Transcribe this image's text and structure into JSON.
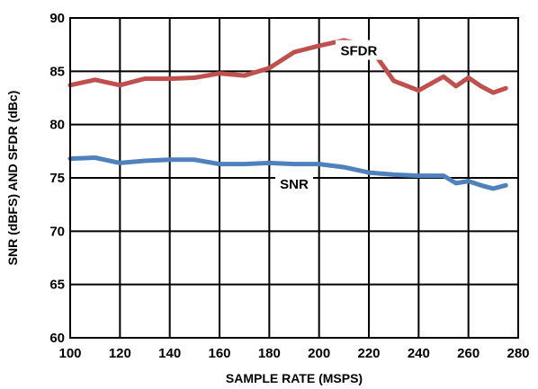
{
  "chart_data": {
    "type": "line",
    "xlabel": "SAMPLE RATE (MSPS)",
    "ylabel": "SNR (dBFS) AND SFDR (dBc)",
    "xlim": [
      100,
      280
    ],
    "ylim": [
      60,
      90
    ],
    "x_ticks": [
      "100",
      "120",
      "140",
      "160",
      "180",
      "200",
      "220",
      "240",
      "260",
      "280"
    ],
    "y_ticks": [
      "60",
      "65",
      "70",
      "75",
      "80",
      "85",
      "90"
    ],
    "grid": true,
    "legend": "none",
    "series": [
      {
        "name": "SFDR",
        "color": "#c0504d",
        "points": [
          [
            100,
            83.7
          ],
          [
            110,
            84.2
          ],
          [
            120,
            83.7
          ],
          [
            130,
            84.3
          ],
          [
            140,
            84.3
          ],
          [
            150,
            84.4
          ],
          [
            160,
            84.8
          ],
          [
            170,
            84.6
          ],
          [
            180,
            85.3
          ],
          [
            190,
            86.8
          ],
          [
            200,
            87.4
          ],
          [
            210,
            87.9
          ],
          [
            220,
            87.4
          ],
          [
            230,
            84.1
          ],
          [
            240,
            83.2
          ],
          [
            250,
            84.5
          ],
          [
            255,
            83.6
          ],
          [
            260,
            84.4
          ],
          [
            265,
            83.6
          ],
          [
            270,
            83.0
          ],
          [
            275,
            83.4
          ]
        ]
      },
      {
        "name": "SNR",
        "color": "#4f81bd",
        "points": [
          [
            100,
            76.8
          ],
          [
            110,
            76.9
          ],
          [
            120,
            76.4
          ],
          [
            130,
            76.6
          ],
          [
            140,
            76.7
          ],
          [
            150,
            76.7
          ],
          [
            160,
            76.3
          ],
          [
            170,
            76.3
          ],
          [
            180,
            76.4
          ],
          [
            190,
            76.3
          ],
          [
            200,
            76.3
          ],
          [
            210,
            76.0
          ],
          [
            220,
            75.5
          ],
          [
            230,
            75.3
          ],
          [
            240,
            75.2
          ],
          [
            250,
            75.2
          ],
          [
            255,
            74.5
          ],
          [
            260,
            74.7
          ],
          [
            265,
            74.3
          ],
          [
            270,
            74.0
          ],
          [
            275,
            74.3
          ]
        ]
      }
    ]
  }
}
